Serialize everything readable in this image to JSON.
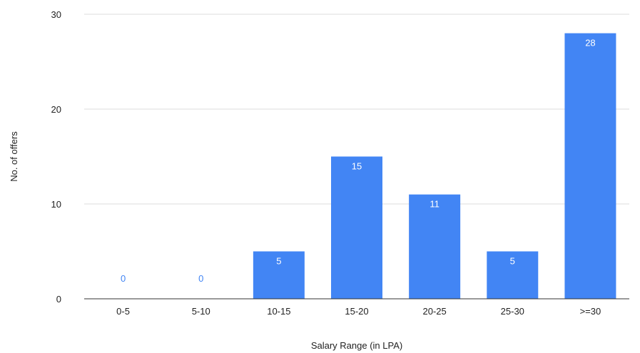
{
  "chart_data": {
    "type": "bar",
    "title": "",
    "xlabel": "Salary Range (in LPA)",
    "ylabel": "No. of offers",
    "categories": [
      "0-5",
      "5-10",
      "10-15",
      "15-20",
      "20-25",
      "25-30",
      ">=30"
    ],
    "values": [
      0,
      0,
      5,
      15,
      11,
      5,
      28
    ],
    "ylim": [
      0,
      30
    ],
    "yticks": [
      0,
      10,
      20,
      30
    ],
    "grid": true,
    "legend": "none",
    "data_labels": true,
    "colors": {
      "bar": "#4285f4",
      "label_inside": "#ffffff",
      "label_outside": "#4285f4",
      "grid": "#dddddd",
      "baseline": "#333333"
    }
  }
}
